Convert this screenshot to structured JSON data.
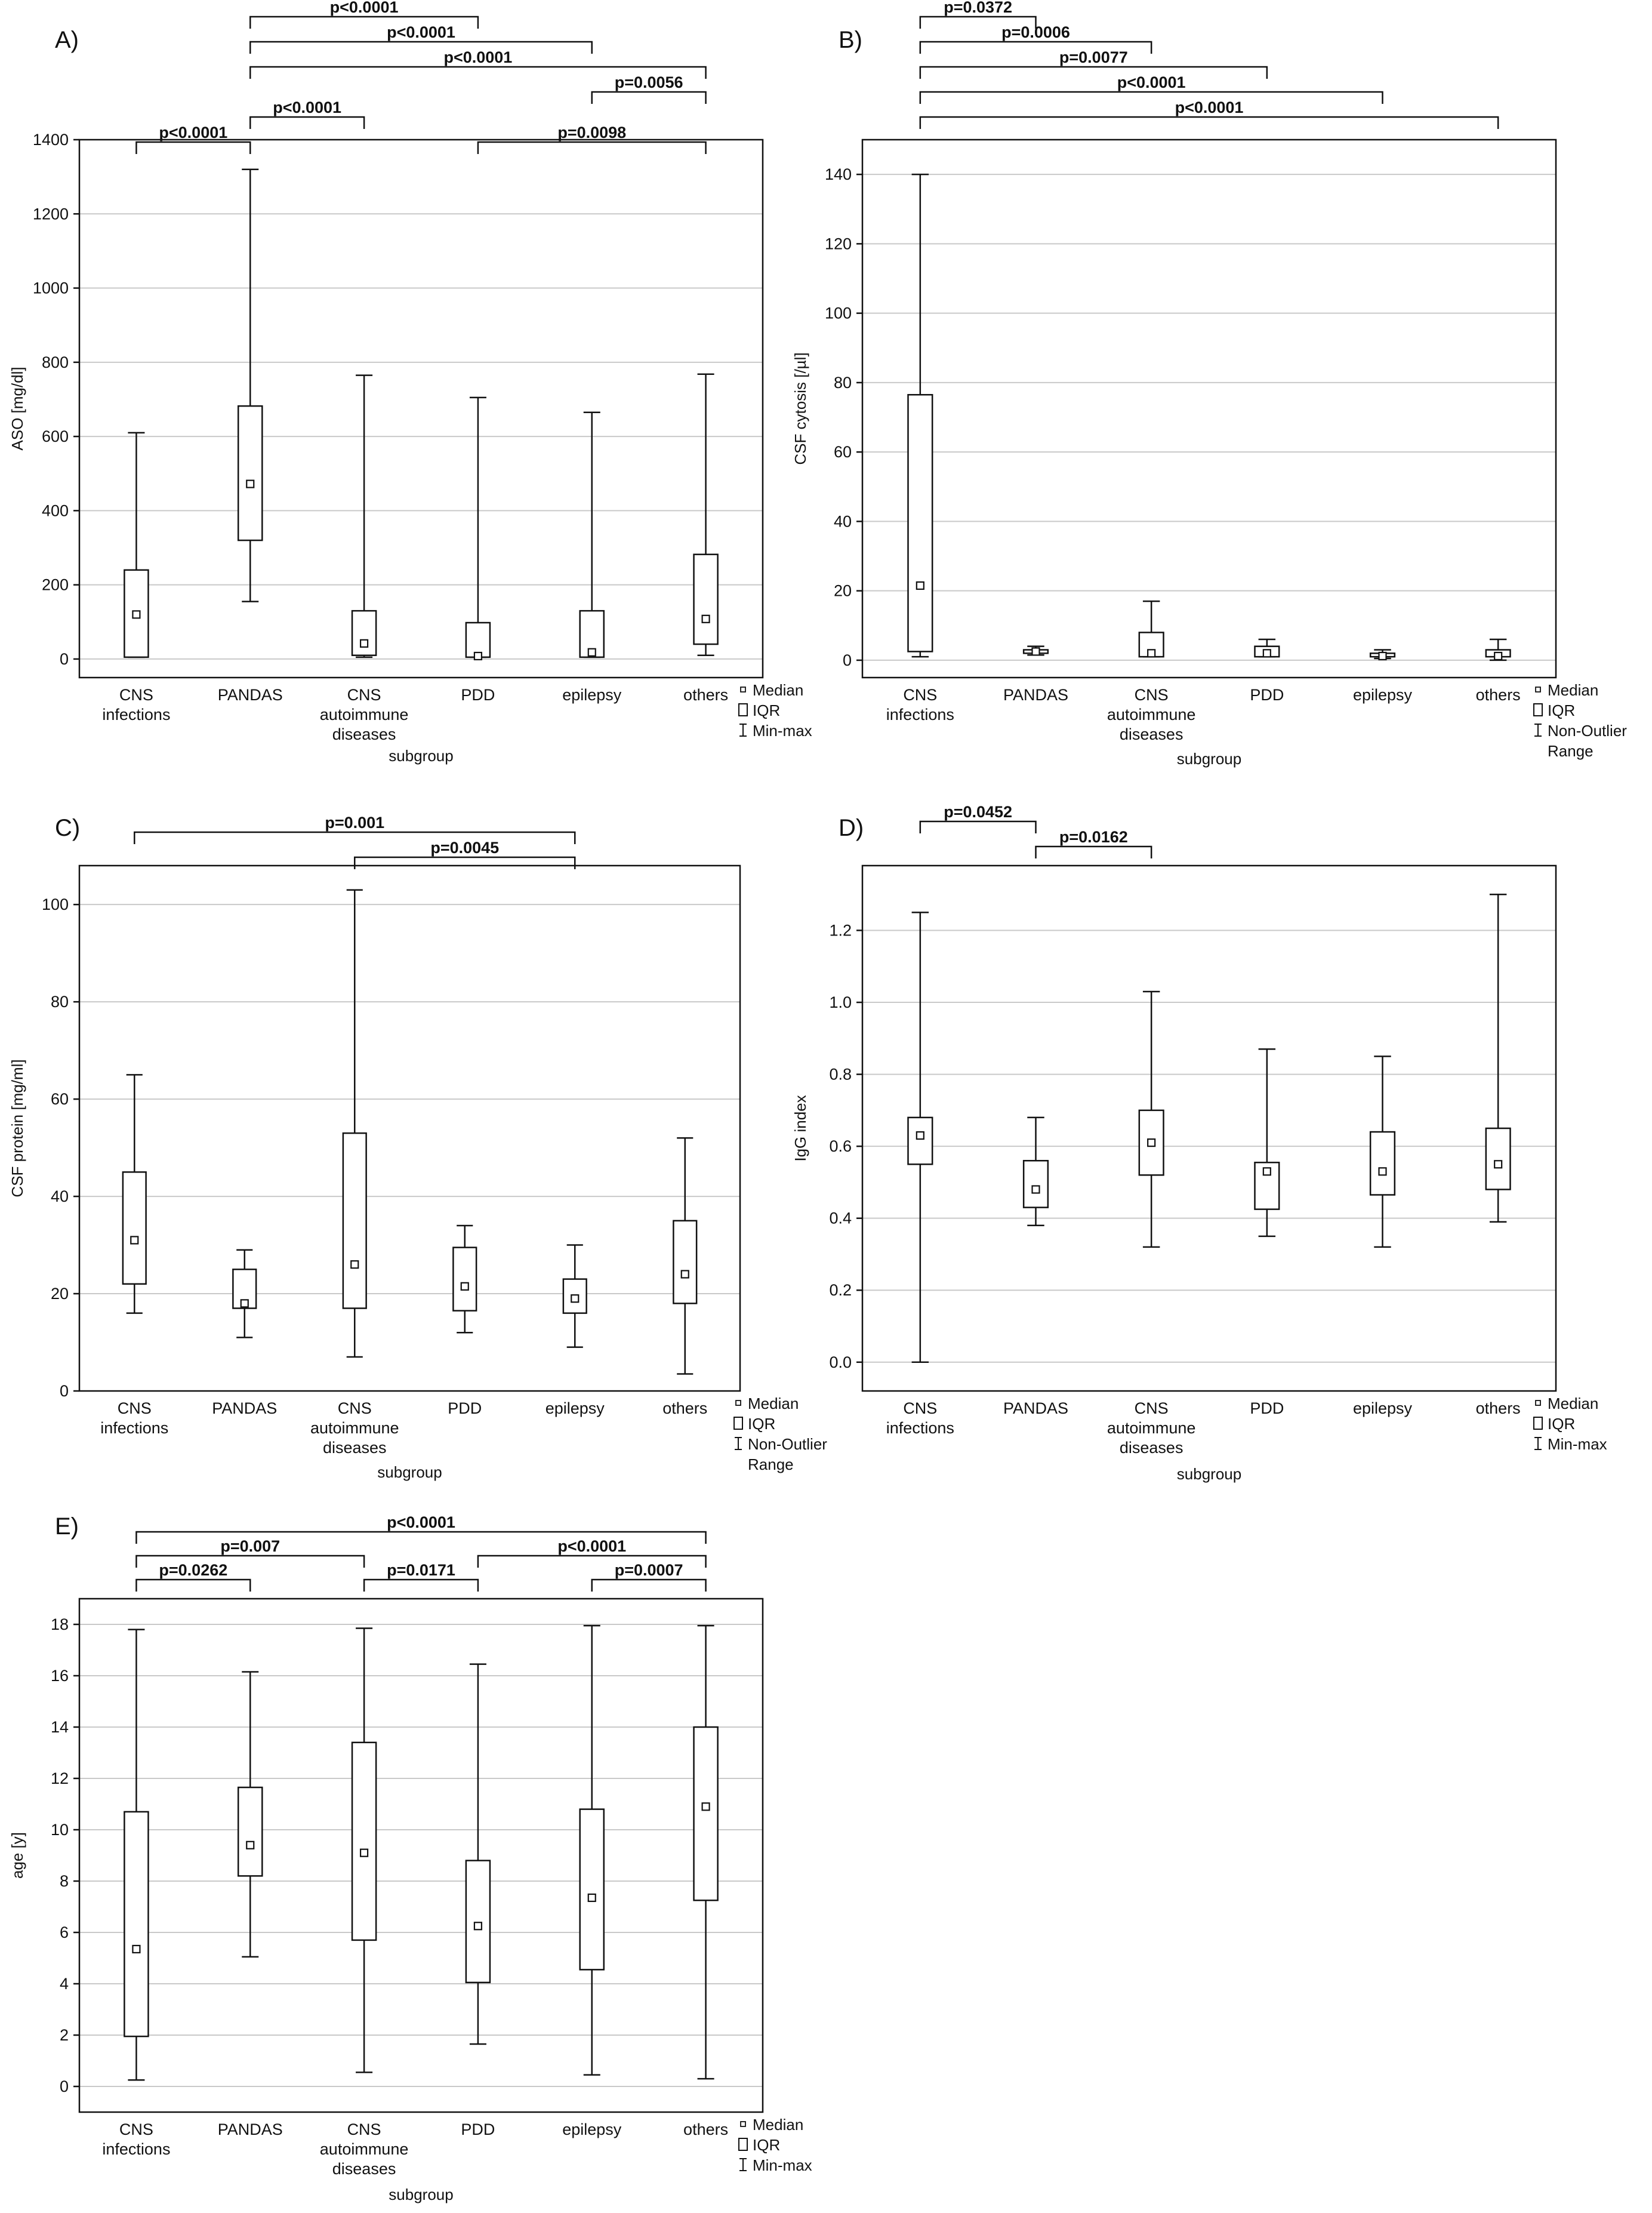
{
  "chart_data": [
    {
      "id": "A",
      "type": "box",
      "panel_label": "A)",
      "ylabel": "ASO [mg/dl]",
      "xlabel": "subgroup",
      "ylim": [
        -50,
        1400
      ],
      "yticks": [
        0,
        200,
        400,
        600,
        800,
        1000,
        1200,
        1400
      ],
      "ytick_labels": [
        "0",
        "200",
        "400",
        "600",
        "800",
        "1000",
        "1200",
        "1400"
      ],
      "categories": [
        [
          "CNS",
          "infections"
        ],
        [
          "PANDAS"
        ],
        [
          "CNS",
          "autoimmune",
          "diseases"
        ],
        [
          "PDD"
        ],
        [
          "epilepsy"
        ],
        [
          "others"
        ]
      ],
      "boxes": [
        {
          "min": 5,
          "q1": 5,
          "median": 120,
          "q3": 240,
          "max": 610
        },
        {
          "min": 155,
          "q1": 320,
          "median": 472,
          "q3": 682,
          "max": 1320
        },
        {
          "min": 5,
          "q1": 10,
          "median": 42,
          "q3": 130,
          "max": 765
        },
        {
          "min": 5,
          "q1": 5,
          "median": 8,
          "q3": 98,
          "max": 705
        },
        {
          "min": 5,
          "q1": 5,
          "median": 18,
          "q3": 130,
          "max": 665
        },
        {
          "min": 10,
          "q1": 40,
          "median": 108,
          "q3": 282,
          "max": 768
        }
      ],
      "legend": [
        "Median",
        "IQR",
        "Min-max"
      ],
      "significance": [
        {
          "from": 1,
          "to": 3,
          "label": "p<0.0001",
          "level": 0
        },
        {
          "from": 1,
          "to": 4,
          "label": "p<0.0001",
          "level": 1
        },
        {
          "from": 1,
          "to": 5,
          "label": "p<0.0001",
          "level": 2
        },
        {
          "from": 4,
          "to": 5,
          "label": "p=0.0056",
          "level": 3
        },
        {
          "from": 1,
          "to": 2,
          "label": "p<0.0001",
          "level": 4
        },
        {
          "from": 0,
          "to": 1,
          "label": "p<0.0001",
          "level": 5
        },
        {
          "from": 3,
          "to": 5,
          "label": "p=0.0098",
          "level": 5
        }
      ]
    },
    {
      "id": "B",
      "type": "box",
      "panel_label": "B)",
      "ylabel": "CSF cytosis [/µl]",
      "xlabel": "subgroup",
      "ylim": [
        -5,
        150
      ],
      "yticks": [
        0,
        20,
        40,
        60,
        80,
        100,
        120,
        140
      ],
      "ytick_labels": [
        "0",
        "20",
        "40",
        "60",
        "80",
        "100",
        "120",
        "140"
      ],
      "categories": [
        [
          "CNS",
          "infections"
        ],
        [
          "PANDAS"
        ],
        [
          "CNS",
          "autoimmune",
          "diseases"
        ],
        [
          "PDD"
        ],
        [
          "epilepsy"
        ],
        [
          "others"
        ]
      ],
      "boxes": [
        {
          "min": 1,
          "q1": 2.5,
          "median": 21.5,
          "q3": 76.5,
          "max": 140
        },
        {
          "min": 1.5,
          "q1": 2,
          "median": 2.5,
          "q3": 3,
          "max": 4
        },
        {
          "min": 1,
          "q1": 1,
          "median": 2,
          "q3": 8,
          "max": 17
        },
        {
          "min": 1,
          "q1": 1,
          "median": 2,
          "q3": 4,
          "max": 6
        },
        {
          "min": 0.5,
          "q1": 1,
          "median": 1.2,
          "q3": 2,
          "max": 3
        },
        {
          "min": 0,
          "q1": 1,
          "median": 1.2,
          "q3": 3,
          "max": 6
        }
      ],
      "legend": [
        "Median",
        "IQR",
        "Non-Outlier",
        "Range"
      ],
      "significance": [
        {
          "from": 0,
          "to": 1,
          "label": "p=0.0372",
          "level": 0
        },
        {
          "from": 0,
          "to": 2,
          "label": "p=0.0006",
          "level": 1
        },
        {
          "from": 0,
          "to": 3,
          "label": "p=0.0077",
          "level": 2
        },
        {
          "from": 0,
          "to": 4,
          "label": "p<0.0001",
          "level": 3
        },
        {
          "from": 0,
          "to": 5,
          "label": "p<0.0001",
          "level": 4
        }
      ]
    },
    {
      "id": "C",
      "type": "box",
      "panel_label": "C)",
      "ylabel": "CSF protein [mg/ml]",
      "xlabel": "subgroup",
      "ylim": [
        0,
        108
      ],
      "yticks": [
        0,
        20,
        40,
        60,
        80,
        100
      ],
      "ytick_labels": [
        "0",
        "20",
        "40",
        "60",
        "80",
        "100"
      ],
      "categories": [
        [
          "CNS",
          "infections"
        ],
        [
          "PANDAS"
        ],
        [
          "CNS",
          "autoimmune",
          "diseases"
        ],
        [
          "PDD"
        ],
        [
          "epilepsy"
        ],
        [
          "others"
        ]
      ],
      "boxes": [
        {
          "min": 16,
          "q1": 22,
          "median": 31,
          "q3": 45,
          "max": 65
        },
        {
          "min": 11,
          "q1": 17,
          "median": 18,
          "q3": 25,
          "max": 29
        },
        {
          "min": 7,
          "q1": 17,
          "median": 26,
          "q3": 53,
          "max": 103
        },
        {
          "min": 12,
          "q1": 16.5,
          "median": 21.5,
          "q3": 29.5,
          "max": 34
        },
        {
          "min": 9,
          "q1": 16,
          "median": 19,
          "q3": 23,
          "max": 30
        },
        {
          "min": 3.5,
          "q1": 18,
          "median": 24,
          "q3": 35,
          "max": 52
        }
      ],
      "legend": [
        "Median",
        "IQR",
        "Non-Outlier",
        "Range"
      ],
      "significance": [
        {
          "from": 0,
          "to": 4,
          "label": "p=0.001",
          "level": 0
        },
        {
          "from": 2,
          "to": 4,
          "label": "p=0.0045",
          "level": 1
        }
      ]
    },
    {
      "id": "D",
      "type": "box",
      "panel_label": "D)",
      "ylabel": "IgG index",
      "xlabel": "subgroup",
      "ylim": [
        -0.08,
        1.38
      ],
      "yticks": [
        0,
        0.2,
        0.4,
        0.6,
        0.8,
        1.0,
        1.2
      ],
      "ytick_labels": [
        "0.0",
        "0.2",
        "0.4",
        "0.6",
        "0.8",
        "1.0",
        "1.2"
      ],
      "categories": [
        [
          "CNS",
          "infections"
        ],
        [
          "PANDAS"
        ],
        [
          "CNS",
          "autoimmune",
          "diseases"
        ],
        [
          "PDD"
        ],
        [
          "epilepsy"
        ],
        [
          "others"
        ]
      ],
      "boxes": [
        {
          "min": 0,
          "q1": 0.55,
          "median": 0.63,
          "q3": 0.68,
          "max": 1.25
        },
        {
          "min": 0.38,
          "q1": 0.43,
          "median": 0.48,
          "q3": 0.56,
          "max": 0.68
        },
        {
          "min": 0.32,
          "q1": 0.52,
          "median": 0.61,
          "q3": 0.7,
          "max": 1.03
        },
        {
          "min": 0.35,
          "q1": 0.425,
          "median": 0.53,
          "q3": 0.555,
          "max": 0.87
        },
        {
          "min": 0.32,
          "q1": 0.465,
          "median": 0.53,
          "q3": 0.64,
          "max": 0.85
        },
        {
          "min": 0.39,
          "q1": 0.48,
          "median": 0.55,
          "q3": 0.65,
          "max": 1.3
        }
      ],
      "legend": [
        "Median",
        "IQR",
        "Min-max"
      ],
      "significance": [
        {
          "from": 0,
          "to": 1,
          "label": "p=0.0452",
          "level": 0
        },
        {
          "from": 1,
          "to": 2,
          "label": "p=0.0162",
          "level": 1
        }
      ]
    },
    {
      "id": "E",
      "type": "box",
      "panel_label": "E)",
      "ylabel": "age [y]",
      "xlabel": "subgroup",
      "ylim": [
        -1,
        19
      ],
      "yticks": [
        0,
        2,
        4,
        6,
        8,
        10,
        12,
        14,
        16,
        18
      ],
      "ytick_labels": [
        "0",
        "2",
        "4",
        "6",
        "8",
        "10",
        "12",
        "14",
        "16",
        "18"
      ],
      "categories": [
        [
          "CNS",
          "infections"
        ],
        [
          "PANDAS"
        ],
        [
          "CNS",
          "autoimmune",
          "diseases"
        ],
        [
          "PDD"
        ],
        [
          "epilepsy"
        ],
        [
          "others"
        ]
      ],
      "boxes": [
        {
          "min": 0.25,
          "q1": 1.95,
          "median": 5.35,
          "q3": 10.7,
          "max": 17.8
        },
        {
          "min": 5.05,
          "q1": 8.2,
          "median": 9.4,
          "q3": 11.65,
          "max": 16.15
        },
        {
          "min": 0.55,
          "q1": 5.7,
          "median": 9.1,
          "q3": 13.4,
          "max": 17.85
        },
        {
          "min": 1.65,
          "q1": 4.05,
          "median": 6.25,
          "q3": 8.8,
          "max": 16.45
        },
        {
          "min": 0.45,
          "q1": 4.55,
          "median": 7.35,
          "q3": 10.8,
          "max": 17.95
        },
        {
          "min": 0.3,
          "q1": 7.25,
          "median": 10.9,
          "q3": 14.0,
          "max": 17.95
        }
      ],
      "legend": [
        "Median",
        "IQR",
        "Min-max"
      ],
      "significance": [
        {
          "from": 0,
          "to": 5,
          "label": "p<0.0001",
          "level": 0
        },
        {
          "from": 0,
          "to": 2,
          "label": "p=0.007",
          "level": 1
        },
        {
          "from": 3,
          "to": 5,
          "label": "p<0.0001",
          "level": 1
        },
        {
          "from": 0,
          "to": 1,
          "label": "p=0.0262",
          "level": 2
        },
        {
          "from": 2,
          "to": 3,
          "label": "p=0.0171",
          "level": 2
        },
        {
          "from": 4,
          "to": 5,
          "label": "p=0.0007",
          "level": 2
        }
      ]
    }
  ]
}
